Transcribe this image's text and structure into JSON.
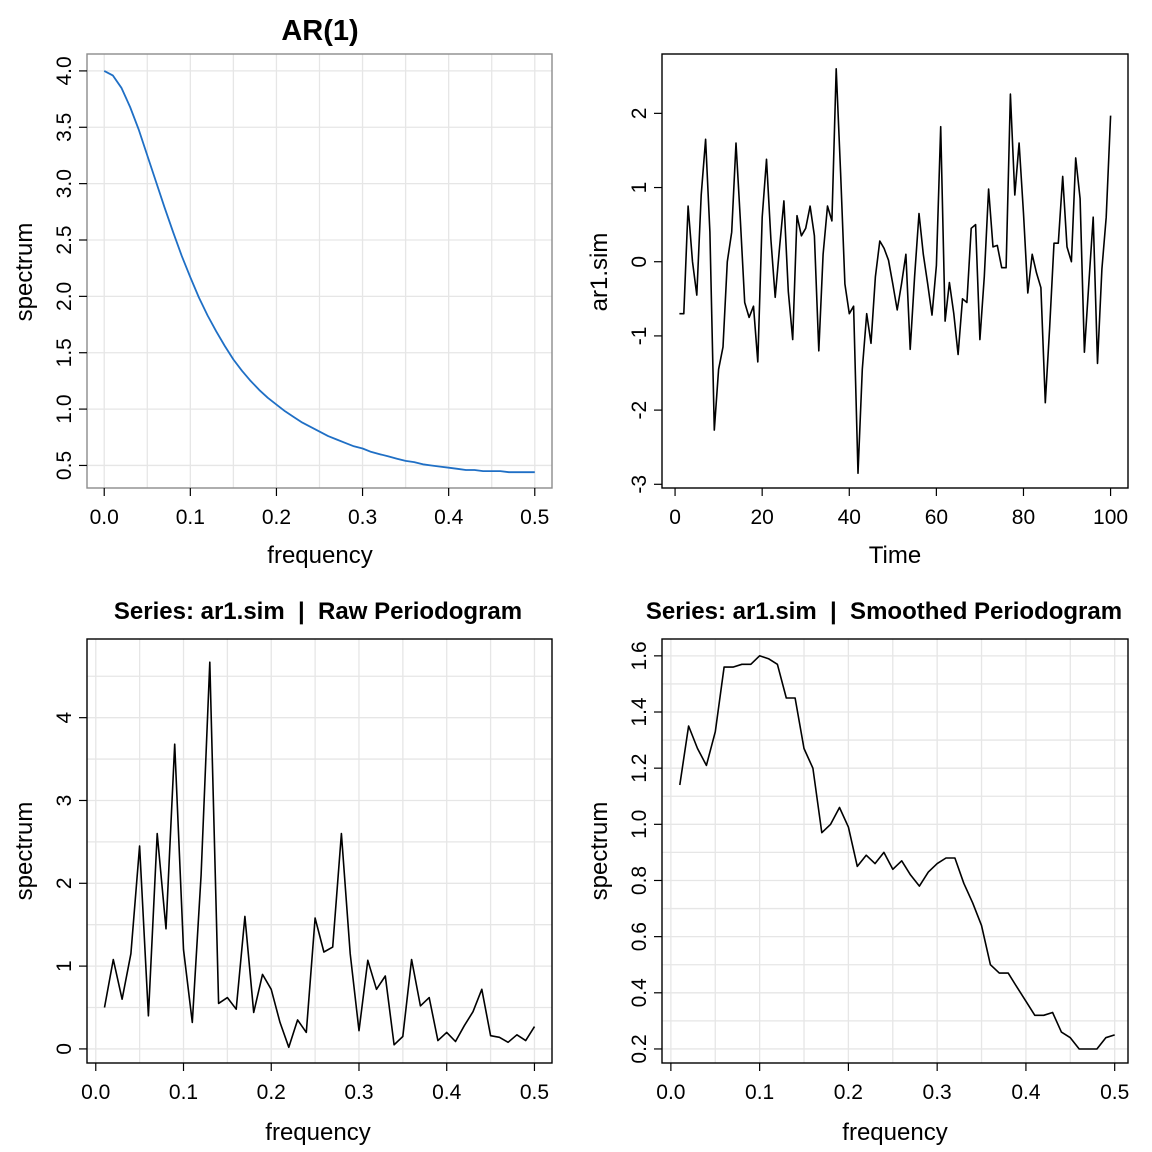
{
  "chart_data": [
    {
      "id": "ar1",
      "type": "line",
      "title": "AR(1)",
      "xlabel": "frequency",
      "ylabel": "spectrum",
      "xlim": [
        -0.02,
        0.52
      ],
      "ylim": [
        0.3,
        4.15
      ],
      "x_ticks": [
        0,
        0.1,
        0.2,
        0.3,
        0.4,
        0.5
      ],
      "x_tick_labels": [
        "0.0",
        "0.1",
        "0.2",
        "0.3",
        "0.4",
        "0.5"
      ],
      "y_ticks": [
        0.5,
        1,
        1.5,
        2,
        2.5,
        3,
        3.5,
        4
      ],
      "y_tick_labels": [
        "0.5",
        "1.0",
        "1.5",
        "2.0",
        "2.5",
        "3.0",
        "3.5",
        "4.0"
      ],
      "x_grid": [
        0,
        0.05,
        0.1,
        0.15,
        0.2,
        0.25,
        0.3,
        0.35,
        0.4,
        0.45,
        0.5
      ],
      "y_grid": [
        0.5,
        1,
        1.5,
        2,
        2.5,
        3,
        3.5,
        4
      ],
      "line_color": "#1f6fc5",
      "series": [
        {
          "x": [
            0,
            0.01,
            0.02,
            0.03,
            0.04,
            0.05,
            0.06,
            0.07,
            0.08,
            0.09,
            0.1,
            0.11,
            0.12,
            0.13,
            0.14,
            0.15,
            0.16,
            0.17,
            0.18,
            0.19,
            0.2,
            0.21,
            0.22,
            0.23,
            0.24,
            0.25,
            0.26,
            0.27,
            0.28,
            0.29,
            0.3,
            0.31,
            0.32,
            0.33,
            0.34,
            0.35,
            0.36,
            0.37,
            0.38,
            0.39,
            0.4,
            0.41,
            0.42,
            0.43,
            0.44,
            0.45,
            0.46,
            0.47,
            0.48,
            0.49,
            0.5
          ],
          "y": [
            4.0,
            3.96,
            3.85,
            3.68,
            3.48,
            3.25,
            3.02,
            2.79,
            2.57,
            2.36,
            2.17,
            1.99,
            1.83,
            1.69,
            1.56,
            1.44,
            1.34,
            1.25,
            1.17,
            1.1,
            1.04,
            0.98,
            0.93,
            0.88,
            0.84,
            0.8,
            0.76,
            0.73,
            0.7,
            0.67,
            0.65,
            0.62,
            0.6,
            0.58,
            0.56,
            0.54,
            0.53,
            0.51,
            0.5,
            0.49,
            0.48,
            0.47,
            0.46,
            0.46,
            0.45,
            0.45,
            0.45,
            0.44,
            0.44,
            0.44,
            0.44
          ]
        }
      ]
    },
    {
      "id": "ts",
      "type": "line",
      "title": "",
      "xlabel": "Time",
      "ylabel": "ar1.sim",
      "xlim": [
        -3,
        104
      ],
      "ylim": [
        -3.05,
        2.8
      ],
      "x_ticks": [
        0,
        20,
        40,
        60,
        80,
        100
      ],
      "x_tick_labels": [
        "0",
        "20",
        "40",
        "60",
        "80",
        "100"
      ],
      "y_ticks": [
        -3,
        -2,
        -1,
        0,
        1,
        2
      ],
      "y_tick_labels": [
        "-3",
        "-2",
        "-1",
        "0",
        "1",
        "2"
      ],
      "x_grid": [
        0,
        10,
        20,
        30,
        40,
        50,
        60,
        70,
        80,
        90,
        100
      ],
      "y_grid": [
        -3,
        -2.5,
        -2,
        -1.5,
        -1,
        -0.5,
        0,
        0.5,
        1,
        1.5,
        2,
        2.5
      ],
      "show_grid": false,
      "line_color": "#000000",
      "series": [
        {
          "x": [
            1,
            2,
            3,
            4,
            5,
            6,
            7,
            8,
            9,
            10,
            11,
            12,
            13,
            14,
            15,
            16,
            17,
            18,
            19,
            20,
            21,
            22,
            23,
            24,
            25,
            26,
            27,
            28,
            29,
            30,
            31,
            32,
            33,
            34,
            35,
            36,
            37,
            38,
            39,
            40,
            41,
            42,
            43,
            44,
            45,
            46,
            47,
            48,
            49,
            50,
            51,
            52,
            53,
            54,
            55,
            56,
            57,
            58,
            59,
            60,
            61,
            62,
            63,
            64,
            65,
            66,
            67,
            68,
            69,
            70,
            71,
            72,
            73,
            74,
            75,
            76,
            77,
            78,
            79,
            80,
            81,
            82,
            83,
            84,
            85,
            86,
            87,
            88,
            89,
            90,
            91,
            92,
            93,
            94,
            95,
            96,
            97,
            98,
            99,
            100
          ],
          "y": [
            -0.7,
            -0.7,
            0.75,
            0.0,
            -0.45,
            0.9,
            1.65,
            0.4,
            -2.27,
            -1.45,
            -1.15,
            0.0,
            0.4,
            1.6,
            0.55,
            -0.55,
            -0.75,
            -0.6,
            -1.35,
            0.6,
            1.38,
            0.3,
            -0.48,
            0.2,
            0.82,
            -0.4,
            -1.05,
            0.62,
            0.35,
            0.45,
            0.75,
            0.35,
            -1.2,
            0.1,
            0.75,
            0.55,
            2.6,
            1.2,
            -0.3,
            -0.7,
            -0.6,
            -2.85,
            -1.45,
            -0.7,
            -1.1,
            -0.2,
            0.28,
            0.18,
            0.02,
            -0.3,
            -0.65,
            -0.3,
            0.1,
            -1.18,
            -0.2,
            0.65,
            0.1,
            -0.3,
            -0.72,
            -0.05,
            1.82,
            -0.8,
            -0.28,
            -0.7,
            -1.25,
            -0.5,
            -0.55,
            0.45,
            0.5,
            -1.05,
            -0.2,
            0.98,
            0.2,
            0.22,
            -0.08,
            -0.08,
            2.26,
            0.9,
            1.6,
            0.65,
            -0.42,
            0.1,
            -0.15,
            -0.35,
            -1.9,
            -0.9,
            0.25,
            0.25,
            1.15,
            0.2,
            0.0,
            1.4,
            0.85,
            -1.22,
            -0.3,
            0.6,
            -1.37,
            -0.1,
            0.6,
            1.97
          ]
        }
      ]
    },
    {
      "id": "raw",
      "type": "line",
      "title": "Series: ar1.sim  |  Raw Periodogram",
      "xlabel": "frequency",
      "ylabel": "spectrum",
      "xlim": [
        -0.01,
        0.52
      ],
      "ylim": [
        -0.17,
        4.95
      ],
      "x_ticks": [
        0,
        0.1,
        0.2,
        0.3,
        0.4,
        0.5
      ],
      "x_tick_labels": [
        "0.0",
        "0.1",
        "0.2",
        "0.3",
        "0.4",
        "0.5"
      ],
      "y_ticks": [
        0,
        1,
        2,
        3,
        4
      ],
      "y_tick_labels": [
        "0",
        "1",
        "2",
        "3",
        "4"
      ],
      "x_grid": [
        0,
        0.05,
        0.1,
        0.15,
        0.2,
        0.25,
        0.3,
        0.35,
        0.4,
        0.45,
        0.5
      ],
      "y_grid": [
        0,
        0.5,
        1,
        1.5,
        2,
        2.5,
        3,
        3.5,
        4,
        4.5
      ],
      "line_color": "#000000",
      "series": [
        {
          "x": [
            0.01,
            0.02,
            0.03,
            0.04,
            0.05,
            0.06,
            0.07,
            0.08,
            0.09,
            0.1,
            0.11,
            0.12,
            0.13,
            0.14,
            0.15,
            0.16,
            0.17,
            0.18,
            0.19,
            0.2,
            0.21,
            0.22,
            0.23,
            0.24,
            0.25,
            0.26,
            0.27,
            0.28,
            0.29,
            0.3,
            0.31,
            0.32,
            0.33,
            0.34,
            0.35,
            0.36,
            0.37,
            0.38,
            0.39,
            0.4,
            0.41,
            0.42,
            0.43,
            0.44,
            0.45,
            0.46,
            0.47,
            0.48,
            0.49,
            0.5
          ],
          "y": [
            0.5,
            1.08,
            0.6,
            1.15,
            2.45,
            0.4,
            2.6,
            1.45,
            3.68,
            1.2,
            0.32,
            2.1,
            4.67,
            0.55,
            0.62,
            0.48,
            1.6,
            0.44,
            0.9,
            0.72,
            0.32,
            0.02,
            0.35,
            0.2,
            1.58,
            1.17,
            1.23,
            2.6,
            1.15,
            0.22,
            1.07,
            0.72,
            0.88,
            0.05,
            0.15,
            1.08,
            0.52,
            0.62,
            0.1,
            0.2,
            0.09,
            0.28,
            0.45,
            0.72,
            0.16,
            0.14,
            0.08,
            0.17,
            0.1,
            0.27
          ]
        }
      ]
    },
    {
      "id": "smooth",
      "type": "line",
      "title": "Series: ar1.sim  |  Smoothed Periodogram",
      "xlabel": "frequency",
      "ylabel": "spectrum",
      "xlim": [
        -0.01,
        0.515
      ],
      "ylim": [
        0.15,
        1.66
      ],
      "x_ticks": [
        0,
        0.1,
        0.2,
        0.3,
        0.4,
        0.5
      ],
      "x_tick_labels": [
        "0.0",
        "0.1",
        "0.2",
        "0.3",
        "0.4",
        "0.5"
      ],
      "y_ticks": [
        0.2,
        0.4,
        0.6,
        0.8,
        1,
        1.2,
        1.4,
        1.6
      ],
      "y_tick_labels": [
        "0.2",
        "0.4",
        "0.6",
        "0.8",
        "1.0",
        "1.2",
        "1.4",
        "1.6"
      ],
      "x_grid": [
        0,
        0.05,
        0.1,
        0.15,
        0.2,
        0.25,
        0.3,
        0.35,
        0.4,
        0.45,
        0.5
      ],
      "y_grid": [
        0.2,
        0.3,
        0.4,
        0.5,
        0.6,
        0.7,
        0.8,
        0.9,
        1,
        1.1,
        1.2,
        1.3,
        1.4,
        1.5,
        1.6
      ],
      "line_color": "#000000",
      "series": [
        {
          "x": [
            0.01,
            0.02,
            0.03,
            0.04,
            0.05,
            0.06,
            0.07,
            0.08,
            0.09,
            0.1,
            0.11,
            0.12,
            0.13,
            0.14,
            0.15,
            0.16,
            0.17,
            0.18,
            0.19,
            0.2,
            0.21,
            0.22,
            0.23,
            0.24,
            0.25,
            0.26,
            0.27,
            0.28,
            0.29,
            0.3,
            0.31,
            0.32,
            0.33,
            0.34,
            0.35,
            0.36,
            0.37,
            0.38,
            0.39,
            0.4,
            0.41,
            0.42,
            0.43,
            0.44,
            0.45,
            0.46,
            0.47,
            0.48,
            0.49,
            0.5
          ],
          "y": [
            1.14,
            1.35,
            1.27,
            1.21,
            1.33,
            1.56,
            1.56,
            1.57,
            1.57,
            1.6,
            1.59,
            1.57,
            1.45,
            1.45,
            1.27,
            1.2,
            0.97,
            1.0,
            1.06,
            0.99,
            0.85,
            0.89,
            0.86,
            0.9,
            0.84,
            0.87,
            0.82,
            0.78,
            0.83,
            0.86,
            0.88,
            0.88,
            0.79,
            0.72,
            0.64,
            0.5,
            0.47,
            0.47,
            0.42,
            0.37,
            0.32,
            0.32,
            0.33,
            0.26,
            0.24,
            0.2,
            0.2,
            0.2,
            0.24,
            0.25
          ]
        }
      ]
    }
  ]
}
